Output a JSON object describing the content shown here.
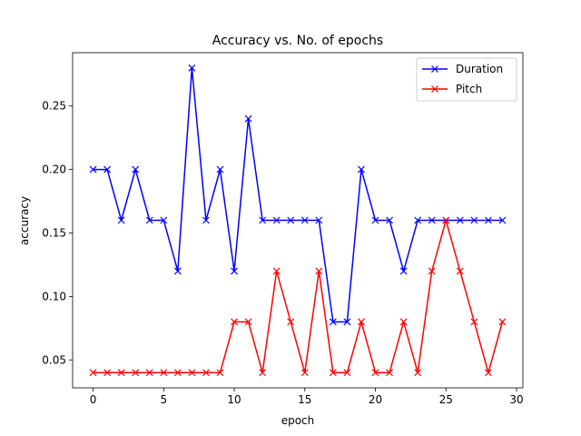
{
  "chart_data": {
    "type": "line",
    "title": "Accuracy vs. No. of epochs",
    "xlabel": "epoch",
    "ylabel": "accuracy",
    "xlim": [
      -1.45,
      30.45
    ],
    "ylim": [
      0.028,
      0.292
    ],
    "xticks": [
      0,
      5,
      10,
      15,
      20,
      25,
      30
    ],
    "yticks": [
      0.05,
      0.1,
      0.15,
      0.2,
      0.25
    ],
    "xtick_labels": [
      "0",
      "5",
      "10",
      "15",
      "20",
      "25",
      "30"
    ],
    "ytick_labels": [
      "0.05",
      "0.10",
      "0.15",
      "0.20",
      "0.25"
    ],
    "grid": false,
    "legend_position": "top-right",
    "x": [
      0,
      1,
      2,
      3,
      4,
      5,
      6,
      7,
      8,
      9,
      10,
      11,
      12,
      13,
      14,
      15,
      16,
      17,
      18,
      19,
      20,
      21,
      22,
      23,
      24,
      25,
      26,
      27,
      28,
      29
    ],
    "series": [
      {
        "name": "Duration",
        "color": "#0000ff",
        "marker": "x",
        "values": [
          0.2,
          0.2,
          0.16,
          0.2,
          0.16,
          0.16,
          0.12,
          0.28,
          0.16,
          0.2,
          0.12,
          0.24,
          0.16,
          0.16,
          0.16,
          0.16,
          0.16,
          0.08,
          0.08,
          0.2,
          0.16,
          0.16,
          0.12,
          0.16,
          0.16,
          0.16,
          0.16,
          0.16,
          0.16,
          0.16
        ]
      },
      {
        "name": "Pitch",
        "color": "#ff0000",
        "marker": "x",
        "values": [
          0.04,
          0.04,
          0.04,
          0.04,
          0.04,
          0.04,
          0.04,
          0.04,
          0.04,
          0.04,
          0.08,
          0.08,
          0.04,
          0.12,
          0.08,
          0.04,
          0.12,
          0.04,
          0.04,
          0.08,
          0.04,
          0.04,
          0.08,
          0.04,
          0.12,
          0.16,
          0.12,
          0.08,
          0.04,
          0.08
        ]
      }
    ]
  }
}
